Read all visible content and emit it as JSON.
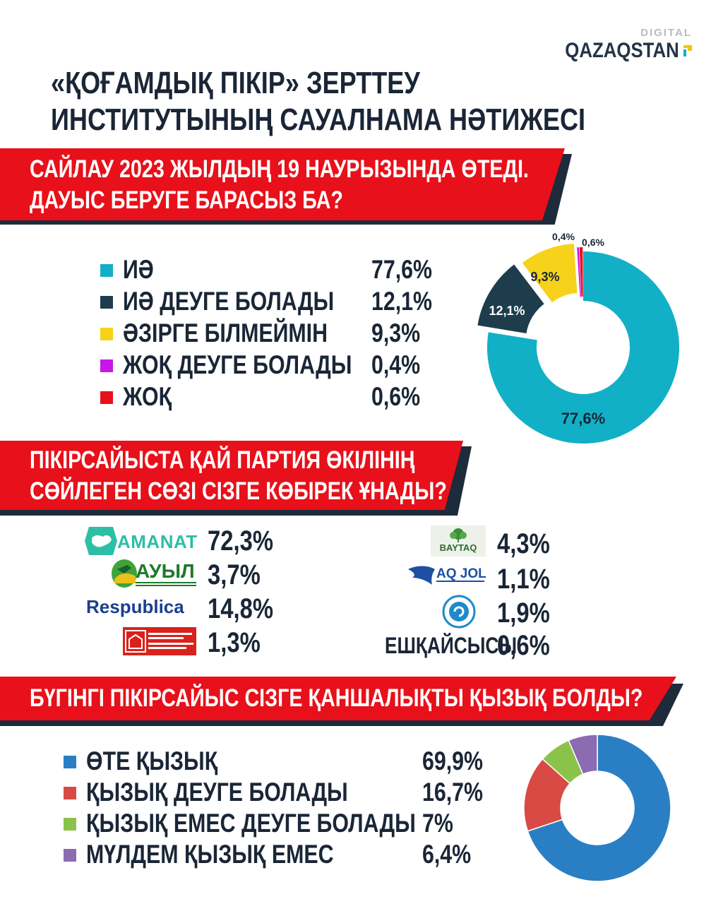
{
  "brand": {
    "top": "DIGITAL",
    "name": "QAZAQSTAN"
  },
  "title": {
    "line1": "«ҚОҒАМДЫҚ ПІКІР» ЗЕРТТЕУ",
    "line2": "ИНСТИТУТЫНЫҢ САУАЛНАМА НӘТИЖЕСІ"
  },
  "q1": {
    "line1": "САЙЛАУ 2023 ЖЫЛДЫҢ 19 НАУРЫЗЫНДА ӨТЕДІ.",
    "line2": "ДАУЫС БЕРУГЕ БАРАСЫЗ БА?"
  },
  "q2": {
    "line1": "ПІКІРСАЙЫСТА ҚАЙ ПАРТИЯ ӨКІЛІНІҢ",
    "line2": "СӨЙЛЕГЕН СӨЗІ СІЗГЕ КӨБІРЕК ҰНАДЫ?"
  },
  "q3": {
    "line1": "БҮГІНГІ ПІКІРСАЙЫС СІЗГЕ ҚАНШАЛЫҚТЫ ҚЫЗЫҚ БОЛДЫ?"
  },
  "chart_data": [
    {
      "type": "pie",
      "categories": [
        "ИӘ",
        "ИӘ ДЕУГЕ БОЛАДЫ",
        "ӘЗІРГЕ БІЛМЕЙМІН",
        "ЖОҚ ДЕУГЕ БОЛАДЫ",
        "ЖОҚ"
      ],
      "values": [
        77.6,
        12.1,
        9.3,
        0.4,
        0.6
      ],
      "value_labels": [
        "77,6%",
        "12,1%",
        "9,3%",
        "0,4%",
        "0,6%"
      ],
      "slice_labels": [
        "77,6%",
        "12,1%",
        "9,3%",
        "0,4%",
        "0,6%"
      ],
      "colors": [
        "#12b0c6",
        "#1e3d4c",
        "#f6d21a",
        "#c916e8",
        "#e8101a"
      ],
      "donut": true,
      "legend": "left"
    },
    {
      "type": "table",
      "parties": [
        {
          "logo": "amanat-logo",
          "logo_text": "AMANAT",
          "value": 72.3,
          "label": "72,3%"
        },
        {
          "logo": "auyl-logo",
          "logo_text": "АУЫЛ",
          "value": 3.7,
          "label": "3,7%"
        },
        {
          "logo": "respublica-logo",
          "logo_text": "Respublica",
          "value": 14.8,
          "label": "14,8%"
        },
        {
          "logo": "halyq-partiyasy-logo",
          "logo_text": "QAZAQSTAN HALYQ PARTIASY",
          "value": 1.3,
          "label": "1,3%"
        },
        {
          "logo": "baytaq-logo",
          "logo_text": "BAYTAQ",
          "value": 4.3,
          "label": "4,3%"
        },
        {
          "logo": "aq-jol-logo",
          "logo_text": "AQ JOL",
          "value": 1.1,
          "label": "1,1%"
        },
        {
          "logo": "ndp-logo",
          "logo_text": "",
          "value": 1.9,
          "label": "1,9%"
        },
        {
          "logo": "",
          "logo_text": "ЕШҚАЙСЫСЫ",
          "value": 0.6,
          "label": "0,6%"
        }
      ]
    },
    {
      "type": "pie",
      "categories": [
        "ӨТЕ ҚЫЗЫҚ",
        "ҚЫЗЫҚ ДЕУГЕ БОЛАДЫ",
        "ҚЫЗЫҚ ЕМЕС ДЕУГЕ БОЛАДЫ",
        "МҮЛДЕМ ҚЫЗЫҚ ЕМЕС"
      ],
      "values": [
        69.9,
        16.7,
        7,
        6.4
      ],
      "value_labels": [
        "69,9%",
        "16,7%",
        "7%",
        "6,4%"
      ],
      "colors": [
        "#2a7fc4",
        "#d94a45",
        "#8bc34a",
        "#8b6bb1"
      ],
      "donut": true,
      "legend": "left"
    }
  ]
}
